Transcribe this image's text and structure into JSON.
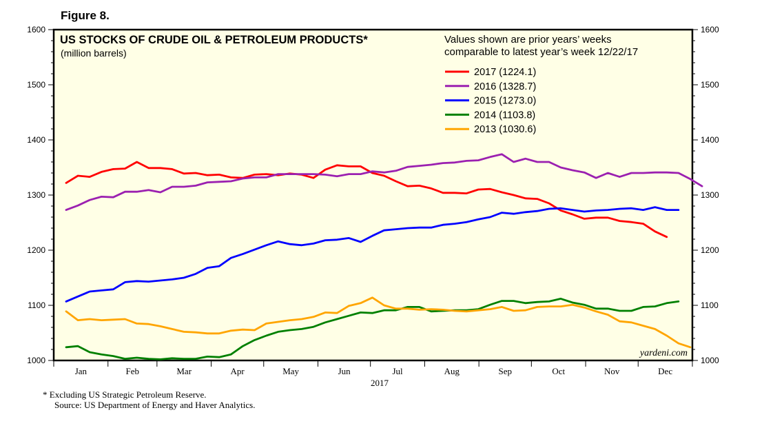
{
  "figure_label": "Figure 8.",
  "chart_data": {
    "type": "line",
    "title": "US STOCKS OF CRUDE OIL & PETROLEUM PRODUCTS*",
    "subtitle": "(million barrels)",
    "note_line1": "Values shown are prior years’ weeks",
    "note_line2": "comparable to latest year’s week 12/22/17",
    "year_label": "2017",
    "x_ticks": [
      "Jan",
      "Feb",
      "Mar",
      "Apr",
      "May",
      "Jun",
      "Jul",
      "Aug",
      "Sep",
      "Oct",
      "Nov",
      "Dec"
    ],
    "ylim": [
      1000,
      1600
    ],
    "y_ticks": [
      "1000",
      "1100",
      "1200",
      "1300",
      "1400",
      "1500",
      "1600"
    ],
    "xlabel": "",
    "ylabel": "",
    "watermark": "yardeni.com",
    "series": [
      {
        "name": "2017",
        "legend": "2017 (1224.1)",
        "color": "#ff0000",
        "values": [
          1322,
          1335,
          1333,
          1342,
          1347,
          1348,
          1360,
          1349,
          1349,
          1347,
          1339,
          1340,
          1336,
          1337,
          1332,
          1331,
          1337,
          1338,
          1336,
          1339,
          1337,
          1331,
          1346,
          1354,
          1352,
          1352,
          1340,
          1335,
          1325,
          1316,
          1317,
          1312,
          1304,
          1304,
          1303,
          1310,
          1311,
          1305,
          1300,
          1294,
          1293,
          1285,
          1272,
          1265,
          1257,
          1259,
          1259,
          1253,
          1251,
          1248,
          1234,
          1224
        ]
      },
      {
        "name": "2016",
        "legend": "2016 (1328.7)",
        "color": "#9b20b0",
        "values": [
          1273,
          1281,
          1291,
          1297,
          1296,
          1306,
          1306,
          1309,
          1305,
          1315,
          1315,
          1317,
          1323,
          1324,
          1325,
          1330,
          1332,
          1332,
          1338,
          1338,
          1338,
          1338,
          1337,
          1334,
          1338,
          1338,
          1343,
          1341,
          1344,
          1351,
          1353,
          1355,
          1358,
          1359,
          1362,
          1363,
          1369,
          1374,
          1360,
          1366,
          1360,
          1360,
          1350,
          1345,
          1341,
          1331,
          1340,
          1333,
          1340,
          1340,
          1341,
          1341,
          1340,
          1329,
          1316
        ]
      },
      {
        "name": "2015",
        "legend": "2015 (1273.0)",
        "color": "#0000ff",
        "values": [
          1107,
          1116,
          1125,
          1127,
          1129,
          1142,
          1144,
          1143,
          1145,
          1147,
          1150,
          1157,
          1168,
          1171,
          1186,
          1193,
          1201,
          1209,
          1216,
          1211,
          1209,
          1212,
          1218,
          1219,
          1222,
          1215,
          1226,
          1236,
          1238,
          1240,
          1241,
          1241,
          1246,
          1248,
          1251,
          1256,
          1260,
          1268,
          1266,
          1269,
          1271,
          1275,
          1276,
          1273,
          1270,
          1272,
          1273,
          1275,
          1276,
          1273,
          1278,
          1273,
          1273
        ]
      },
      {
        "name": "2014",
        "legend": "2014 (1103.8)",
        "color": "#008000",
        "values": [
          1024,
          1026,
          1015,
          1011,
          1008,
          1003,
          1005,
          1003,
          1002,
          1004,
          1003,
          1003,
          1007,
          1006,
          1011,
          1026,
          1037,
          1045,
          1052,
          1055,
          1057,
          1061,
          1069,
          1075,
          1081,
          1087,
          1086,
          1091,
          1091,
          1097,
          1097,
          1089,
          1090,
          1091,
          1091,
          1093,
          1101,
          1108,
          1108,
          1104,
          1106,
          1107,
          1112,
          1105,
          1101,
          1094,
          1094,
          1090,
          1090,
          1097,
          1098,
          1104,
          1107
        ]
      },
      {
        "name": "2013",
        "legend": "2013 (1030.6)",
        "color": "#ffa500",
        "values": [
          1089,
          1073,
          1075,
          1073,
          1074,
          1075,
          1067,
          1066,
          1062,
          1057,
          1052,
          1051,
          1049,
          1049,
          1054,
          1056,
          1055,
          1067,
          1070,
          1073,
          1075,
          1079,
          1087,
          1086,
          1099,
          1104,
          1114,
          1100,
          1094,
          1094,
          1092,
          1093,
          1092,
          1090,
          1089,
          1091,
          1093,
          1097,
          1090,
          1091,
          1097,
          1098,
          1098,
          1101,
          1096,
          1089,
          1083,
          1071,
          1069,
          1063,
          1057,
          1045,
          1031,
          1024
        ]
      }
    ]
  },
  "footnote_line1": "*  Excluding US Strategic Petroleum Reserve.",
  "footnote_line2": "Source: US Department of Energy and Haver Analytics."
}
